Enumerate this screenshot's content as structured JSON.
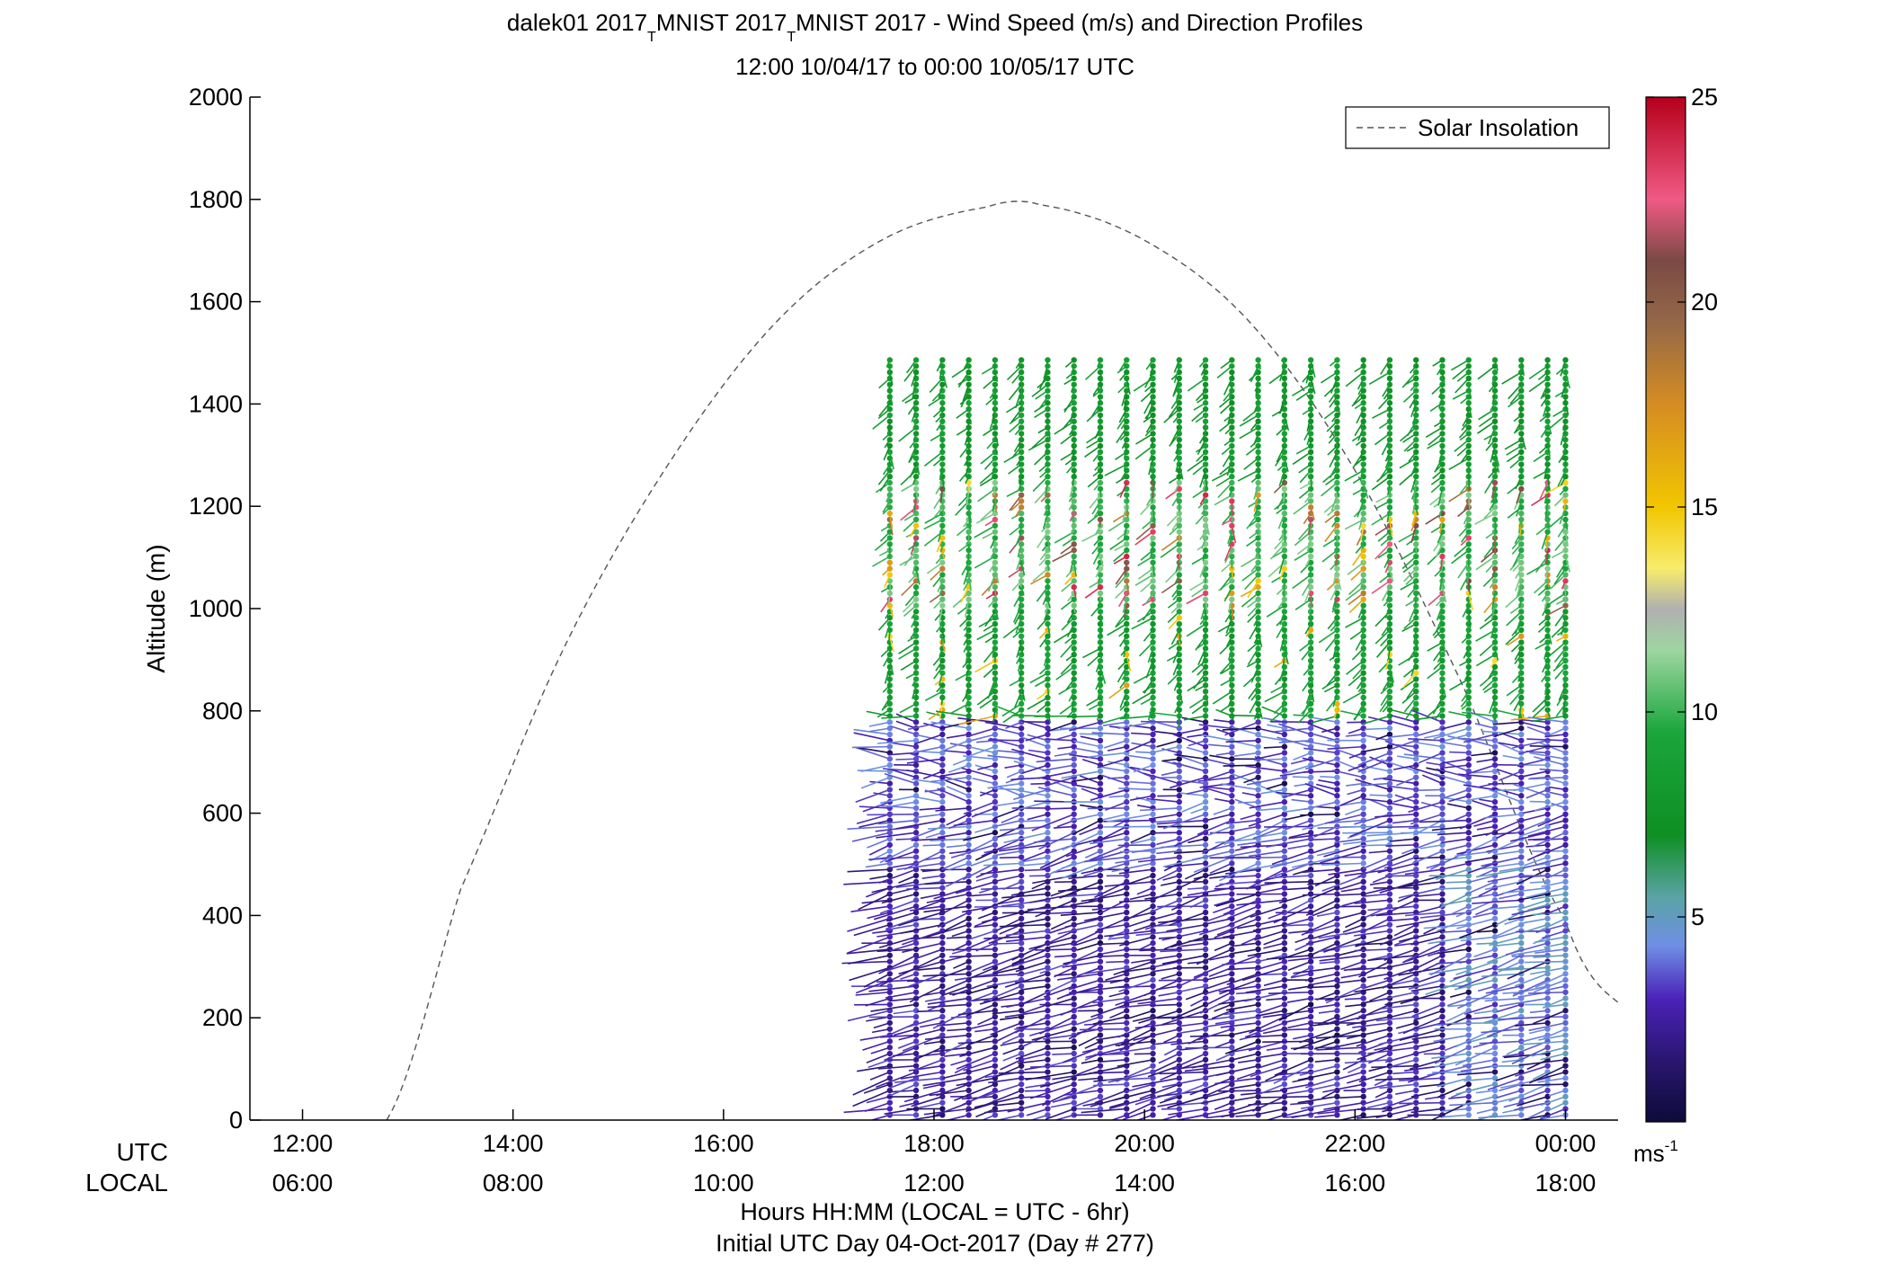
{
  "chart_data": {
    "type": "wind-barb-profile",
    "title_line1_parts": [
      "dalek01 2017",
      "T",
      "MNIST 2017",
      "T",
      "MNIST 2017 - Wind Speed (m/s) and Direction Profiles"
    ],
    "title_line2": "12:00 10/04/17 to 00:00 10/05/17  UTC",
    "ylabel": "Altitude (m)",
    "ylim": [
      0,
      2000
    ],
    "yticks": [
      0,
      200,
      400,
      600,
      800,
      1000,
      1200,
      1400,
      1600,
      1800,
      2000
    ],
    "xlim_hours": [
      11.5,
      24.5
    ],
    "xtick_hours": [
      12,
      14,
      16,
      18,
      20,
      22,
      24
    ],
    "utc_row_label": "UTC",
    "local_row_label": "LOCAL",
    "utc_tick_labels": [
      "12:00",
      "14:00",
      "16:00",
      "18:00",
      "20:00",
      "22:00",
      "00:00"
    ],
    "local_tick_labels": [
      "06:00",
      "08:00",
      "10:00",
      "12:00",
      "14:00",
      "16:00",
      "18:00"
    ],
    "xlabel_line1": "Hours HH:MM  (LOCAL = UTC - 6hr)",
    "xlabel_line2": "Initial UTC Day 04-Oct-2017 (Day # 277)",
    "legend": {
      "label": "Solar Insolation",
      "placement": "top-right",
      "style": "dashed",
      "color": "#555555"
    },
    "colorbar": {
      "range": [
        0,
        25
      ],
      "ticks": [
        5,
        10,
        15,
        20,
        25
      ],
      "unit_base": "ms",
      "unit_exponent": "-1",
      "stops": [
        {
          "v": 0,
          "c": "#0d0b3a"
        },
        {
          "v": 1.5,
          "c": "#2a1670"
        },
        {
          "v": 3,
          "c": "#4b22b8"
        },
        {
          "v": 4.3,
          "c": "#6f8fe6"
        },
        {
          "v": 5.5,
          "c": "#5aa3a3"
        },
        {
          "v": 7,
          "c": "#0f8f23"
        },
        {
          "v": 9.5,
          "c": "#1aa63c"
        },
        {
          "v": 11.5,
          "c": "#9ed6a0"
        },
        {
          "v": 12.5,
          "c": "#b0b0b0"
        },
        {
          "v": 13.5,
          "c": "#f7ec6c"
        },
        {
          "v": 15,
          "c": "#f2c600"
        },
        {
          "v": 17.5,
          "c": "#d58c22"
        },
        {
          "v": 19.5,
          "c": "#946848"
        },
        {
          "v": 21,
          "c": "#7a4a44"
        },
        {
          "v": 22.5,
          "c": "#f05a84"
        },
        {
          "v": 25,
          "c": "#b5001a"
        }
      ]
    },
    "solar_insolation": {
      "unit": "m (plotted against altitude axis)",
      "points": [
        [
          12.8,
          0
        ],
        [
          13.5,
          450
        ],
        [
          14.5,
          930
        ],
        [
          15.5,
          1290
        ],
        [
          16.5,
          1560
        ],
        [
          17.5,
          1720
        ],
        [
          18.5,
          1785
        ],
        [
          19.0,
          1790
        ],
        [
          20.0,
          1720
        ],
        [
          21.0,
          1560
        ],
        [
          22.0,
          1270
        ],
        [
          23.0,
          860
        ],
        [
          24.0,
          390
        ],
        [
          24.5,
          230
        ]
      ]
    },
    "wind_profiles": {
      "description": "Vertical profiles of wind speed (colour) and direction (barb) every ~15 min from 17:40 to 24:00 UTC, surface to ~1490 m",
      "profile_times_hours": [
        17.58,
        17.83,
        18.08,
        18.33,
        18.58,
        18.83,
        19.08,
        19.33,
        19.58,
        19.83,
        20.08,
        20.33,
        20.58,
        20.83,
        21.08,
        21.33,
        21.58,
        21.83,
        22.08,
        22.33,
        22.58,
        22.83,
        23.08,
        23.33,
        23.58,
        23.83,
        24.0
      ],
      "top_altitude_m": 1490,
      "speed_layers": [
        {
          "alt_range_m": [
            0,
            500
          ],
          "typical_speed_ms": 2.5,
          "note": "light winds; lighter blue after 23:00 UTC"
        },
        {
          "alt_range_m": [
            500,
            780
          ],
          "typical_speed_ms": 3.5
        },
        {
          "alt_range_m": [
            780,
            1000
          ],
          "typical_speed_ms": 8.5
        },
        {
          "alt_range_m": [
            1000,
            1250
          ],
          "typical_speed_ms": 10,
          "note": "embedded 14-24 m/s gusts"
        },
        {
          "alt_range_m": [
            1250,
            1490
          ],
          "typical_speed_ms": 8
        }
      ]
    }
  }
}
